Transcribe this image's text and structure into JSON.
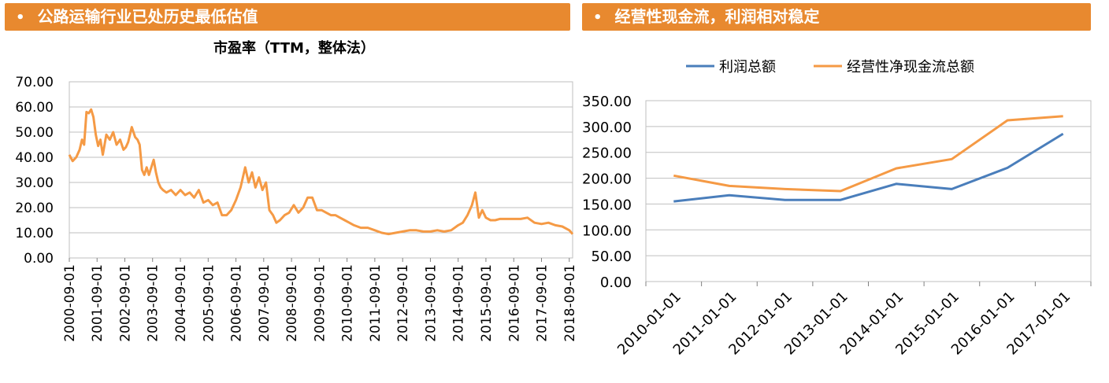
{
  "left_header": {
    "bullet": "•",
    "title": "公路运输行业已处历史最低估值"
  },
  "right_header": {
    "bullet": "•",
    "title": "经营性现金流，利润相对稳定"
  },
  "colors": {
    "banner": "#E8892F",
    "orange_series": "#F59A45",
    "blue_series": "#4A7EBB",
    "grid": "#BFBFBF"
  },
  "chart_data": [
    {
      "type": "line",
      "title": "市盈率（TTM，整体法）",
      "ylim": [
        0,
        70
      ],
      "y_ticks": [
        "0.00",
        "10.00",
        "20.00",
        "30.00",
        "40.00",
        "50.00",
        "60.00",
        "70.00"
      ],
      "x_tick_labels": [
        "2000-09-01",
        "2001-09-01",
        "2002-09-01",
        "2003-09-01",
        "2004-09-01",
        "2005-09-01",
        "2006-09-01",
        "2007-09-01",
        "2008-09-01",
        "2009-09-01",
        "2010-09-01",
        "2011-09-01",
        "2012-09-01",
        "2013-09-01",
        "2014-09-01",
        "2015-09-01",
        "2016-09-01",
        "2017-09-01",
        "2018-09-01"
      ],
      "grid": true,
      "series": [
        {
          "color": "#F59A45",
          "x": [
            "2000-09-01",
            "2000-10-15",
            "2000-12-01",
            "2001-01-15",
            "2001-02-15",
            "2001-03-15",
            "2001-04-15",
            "2001-05-15",
            "2001-06-15",
            "2001-07-15",
            "2001-08-15",
            "2001-09-15",
            "2001-10-15",
            "2001-11-15",
            "2002-01-01",
            "2002-02-15",
            "2002-04-01",
            "2002-05-15",
            "2002-07-01",
            "2002-08-15",
            "2002-09-15",
            "2002-10-15",
            "2002-12-01",
            "2003-01-15",
            "2003-02-15",
            "2003-03-15",
            "2003-04-15",
            "2003-05-15",
            "2003-06-15",
            "2003-07-15",
            "2003-08-15",
            "2003-09-15",
            "2003-10-15",
            "2003-11-15",
            "2003-12-15",
            "2004-01-15",
            "2004-03-01",
            "2004-05-01",
            "2004-07-01",
            "2004-09-01",
            "2004-11-01",
            "2005-01-01",
            "2005-03-01",
            "2005-05-01",
            "2005-07-01",
            "2005-09-01",
            "2005-11-01",
            "2006-01-01",
            "2006-03-01",
            "2006-05-01",
            "2006-07-01",
            "2006-09-01",
            "2006-11-01",
            "2007-01-01",
            "2007-02-15",
            "2007-04-01",
            "2007-05-15",
            "2007-07-01",
            "2007-08-15",
            "2007-10-01",
            "2007-11-15",
            "2008-01-01",
            "2008-02-15",
            "2008-04-01",
            "2008-06-01",
            "2008-08-01",
            "2008-10-01",
            "2008-12-01",
            "2009-02-01",
            "2009-04-01",
            "2009-06-01",
            "2009-08-01",
            "2009-10-01",
            "2009-12-01",
            "2010-02-01",
            "2010-04-01",
            "2010-06-01",
            "2010-08-01",
            "2010-10-01",
            "2010-12-01",
            "2011-03-01",
            "2011-06-01",
            "2011-09-01",
            "2011-12-01",
            "2012-03-01",
            "2012-06-01",
            "2012-09-01",
            "2012-12-01",
            "2013-03-01",
            "2013-06-01",
            "2013-09-01",
            "2013-12-01",
            "2014-03-01",
            "2014-06-01",
            "2014-09-01",
            "2014-11-01",
            "2015-01-01",
            "2015-03-01",
            "2015-04-15",
            "2015-06-01",
            "2015-07-15",
            "2015-09-01",
            "2015-11-01",
            "2016-01-01",
            "2016-03-01",
            "2016-06-01",
            "2016-09-01",
            "2016-12-01",
            "2017-03-01",
            "2017-06-01",
            "2017-09-01",
            "2017-12-01",
            "2018-03-01",
            "2018-06-01",
            "2018-09-01",
            "2018-10-15"
          ],
          "y": [
            41,
            38.5,
            40,
            43,
            47,
            45,
            58,
            57.5,
            59,
            56,
            49,
            44.5,
            47,
            41,
            49,
            47,
            50,
            45,
            47,
            43,
            44,
            46,
            52,
            48,
            47,
            45,
            35,
            33,
            36,
            33,
            36,
            39,
            34,
            30,
            28,
            27,
            26,
            27,
            25,
            27,
            25,
            26,
            24,
            27,
            22,
            23,
            21,
            22,
            17,
            17,
            19,
            23,
            28,
            36,
            30,
            34,
            28,
            32,
            27,
            30,
            19,
            17,
            14,
            15,
            17,
            18,
            21,
            18,
            20,
            24,
            24,
            19,
            19,
            18,
            17,
            17,
            16,
            15,
            14,
            13,
            12,
            12,
            11,
            10,
            9.5,
            10,
            10.5,
            11,
            11,
            10.5,
            10.5,
            11,
            10.5,
            11,
            13,
            14,
            17,
            21,
            26,
            16,
            19,
            16,
            15,
            15,
            15.5,
            15.5,
            15.5,
            15.5,
            16,
            14,
            13.5,
            14,
            13,
            12.5,
            11,
            9.5
          ]
        }
      ]
    },
    {
      "type": "line",
      "title": "",
      "ylim": [
        0,
        350
      ],
      "y_ticks": [
        "0.00",
        "50.00",
        "100.00",
        "150.00",
        "200.00",
        "250.00",
        "300.00",
        "350.00"
      ],
      "categories": [
        "2010-01-01",
        "2011-01-01",
        "2012-01-01",
        "2013-01-01",
        "2014-01-01",
        "2015-01-01",
        "2016-01-01",
        "2017-01-01"
      ],
      "legend": "top",
      "grid": true,
      "series": [
        {
          "name": "利润总额",
          "color": "#4A7EBB",
          "values": [
            155,
            167,
            158,
            158,
            189,
            179,
            220,
            286
          ]
        },
        {
          "name": "经营性净现金流总额",
          "color": "#F59A45",
          "values": [
            205,
            185,
            179,
            175,
            219,
            237,
            312,
            320
          ]
        }
      ]
    }
  ]
}
